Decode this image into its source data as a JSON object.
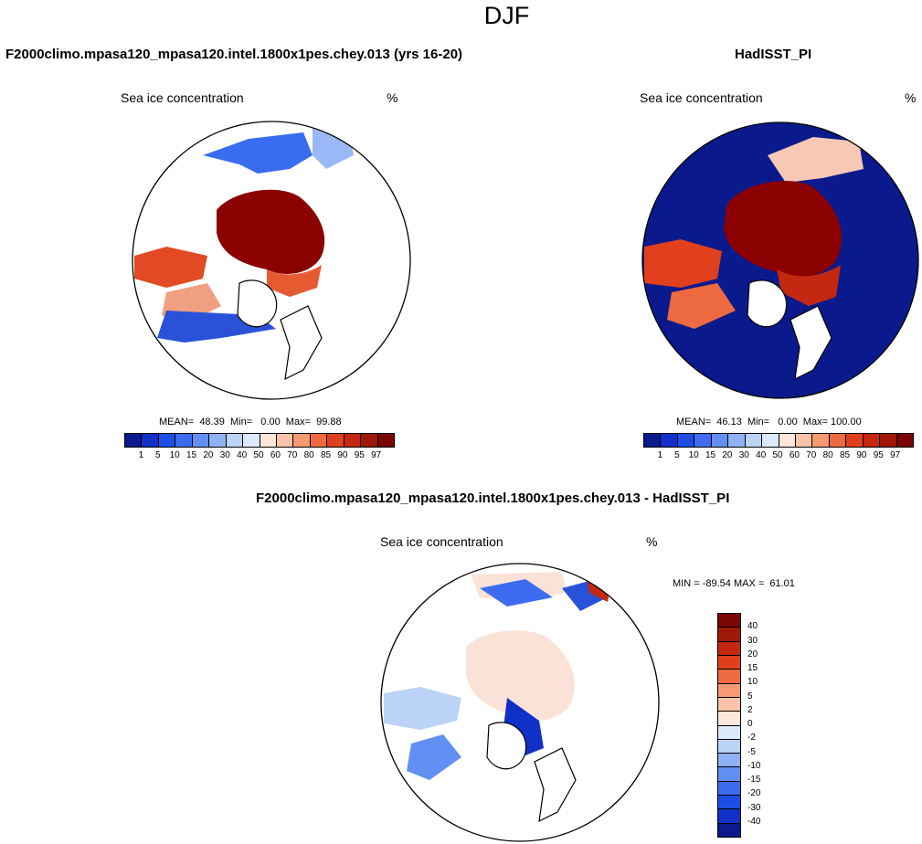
{
  "title": "DJF",
  "panels": {
    "model": {
      "title": "F2000climo.mpasa120_mpasa120.intel.1800x1pes.chey.013 (yrs 16-20)",
      "variable": "Sea ice concentration",
      "units": "%",
      "stats": "MEAN=  48.39  Min=   0.00  Max=  99.88",
      "mean": 48.39,
      "min": 0.0,
      "max": 99.88
    },
    "obs": {
      "title": "HadISST_PI",
      "variable": "Sea ice concentration",
      "units": "%",
      "stats": "MEAN=  46.13  Min=   0.00  Max= 100.00",
      "mean": 46.13,
      "min": 0.0,
      "max": 100.0
    },
    "diff": {
      "title": "F2000climo.mpasa120_mpasa120.intel.1800x1pes.chey.013 - HadISST_PI",
      "variable": "Sea ice concentration",
      "units": "%",
      "stats": "MIN = -89.54 MAX =  61.01",
      "min": -89.54,
      "max": 61.01
    }
  },
  "colorbars": {
    "abs": {
      "labels": [
        "1",
        "5",
        "10",
        "15",
        "20",
        "30",
        "40",
        "50",
        "60",
        "70",
        "80",
        "85",
        "90",
        "95",
        "97"
      ],
      "colors": [
        "#0a1a8c",
        "#1030c8",
        "#1f4ee6",
        "#3d6cf0",
        "#6290f2",
        "#8fb2f5",
        "#bcd3f8",
        "#dde9fb",
        "#fde6da",
        "#fbc4a8",
        "#f59a72",
        "#ee6a40",
        "#e0401c",
        "#c42810",
        "#a01808",
        "#7a0606"
      ]
    },
    "diff": {
      "labels": [
        "40",
        "30",
        "20",
        "15",
        "10",
        "5",
        "2",
        "0",
        "-2",
        "-5",
        "-10",
        "-15",
        "-20",
        "-30",
        "-40"
      ],
      "colors": [
        "#7a0606",
        "#a01808",
        "#c42810",
        "#e0401c",
        "#ee6a40",
        "#f59a72",
        "#fbc4a8",
        "#fde6da",
        "#dde9fb",
        "#bcd3f8",
        "#8fb2f5",
        "#6290f2",
        "#3d6cf0",
        "#1f4ee6",
        "#1030c8",
        "#0a1a8c"
      ]
    }
  }
}
